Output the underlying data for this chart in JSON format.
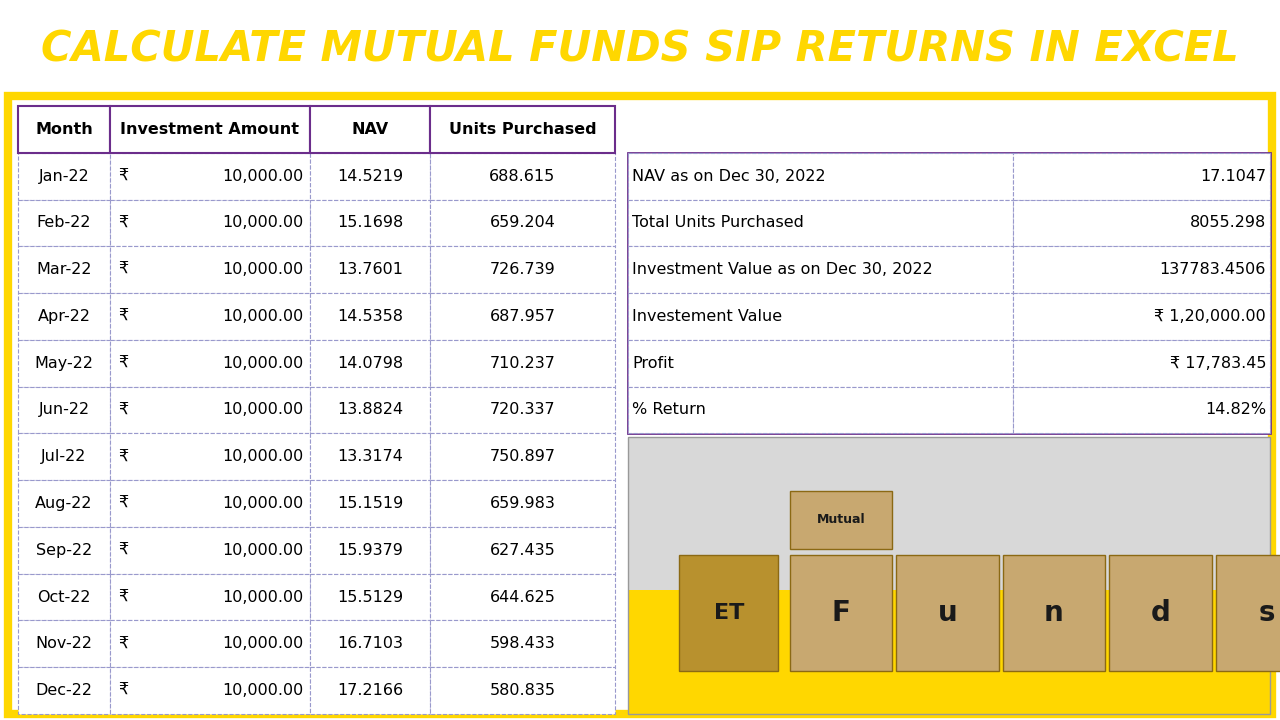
{
  "title": "CALCULATE MUTUAL FUNDS SIP RETURNS IN EXCEL",
  "title_bg": "#6B2D8B",
  "title_color": "#FFD700",
  "yellow_border": "#FFD700",
  "purple_border": "#6B2D8B",
  "white_bg": "#FFFFFF",
  "header_row": [
    "Month",
    "Investment Amount",
    "NAV",
    "Units Purchased"
  ],
  "rows": [
    [
      "Jan-22",
      "₹",
      "10,000.00",
      "14.5219",
      "688.615"
    ],
    [
      "Feb-22",
      "₹",
      "10,000.00",
      "15.1698",
      "659.204"
    ],
    [
      "Mar-22",
      "₹",
      "10,000.00",
      "13.7601",
      "726.739"
    ],
    [
      "Apr-22",
      "₹",
      "10,000.00",
      "14.5358",
      "687.957"
    ],
    [
      "May-22",
      "₹",
      "10,000.00",
      "14.0798",
      "710.237"
    ],
    [
      "Jun-22",
      "₹",
      "10,000.00",
      "13.8824",
      "720.337"
    ],
    [
      "Jul-22",
      "₹",
      "10,000.00",
      "13.3174",
      "750.897"
    ],
    [
      "Aug-22",
      "₹",
      "10,000.00",
      "15.1519",
      "659.983"
    ],
    [
      "Sep-22",
      "₹",
      "10,000.00",
      "15.9379",
      "627.435"
    ],
    [
      "Oct-22",
      "₹",
      "10,000.00",
      "15.5129",
      "644.625"
    ],
    [
      "Nov-22",
      "₹",
      "10,000.00",
      "16.7103",
      "598.433"
    ],
    [
      "Dec-22",
      "₹",
      "10,000.00",
      "17.2166",
      "580.835"
    ]
  ],
  "summary_rows": [
    [
      "NAV as on Dec 30, 2022",
      "17.1047"
    ],
    [
      "Total Units Purchased",
      "8055.298"
    ],
    [
      "Investment Value as on Dec 30, 2022",
      "137783.4506"
    ],
    [
      "Investement Value",
      "₹ 1,20,000.00"
    ],
    [
      "Profit",
      "₹ 17,783.45"
    ],
    [
      "% Return",
      "14.82%"
    ]
  ],
  "img_bg_top": "#E8E8E8",
  "img_bg_bottom": "#FFD700",
  "img_text_color": "#1a1a1a"
}
